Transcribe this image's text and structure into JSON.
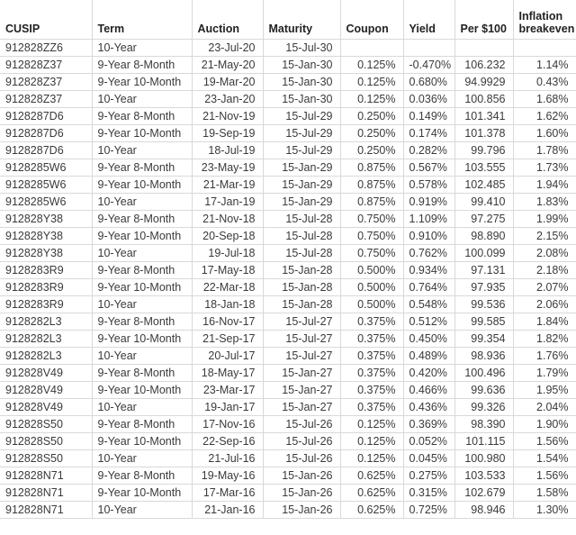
{
  "table": {
    "columns": [
      {
        "key": "cusip",
        "label": "CUSIP",
        "align": "left"
      },
      {
        "key": "term",
        "label": "Term",
        "align": "left"
      },
      {
        "key": "auction",
        "label": "Auction",
        "align": "right"
      },
      {
        "key": "maturity",
        "label": "Maturity",
        "align": "right"
      },
      {
        "key": "coupon",
        "label": "Coupon",
        "align": "right"
      },
      {
        "key": "yield",
        "label": "Yield",
        "align": "right"
      },
      {
        "key": "per100",
        "label": "Per $100",
        "align": "right"
      },
      {
        "key": "breakeven",
        "label": "Inflation breakeven",
        "align": "right"
      }
    ],
    "rows": [
      [
        "912828ZZ6",
        "10-Year",
        "23-Jul-20",
        "15-Jul-30",
        "",
        "",
        "",
        ""
      ],
      [
        "912828Z37",
        "9-Year 8-Month",
        "21-May-20",
        "15-Jan-30",
        "0.125%",
        "-0.470%",
        "106.232",
        "1.14%"
      ],
      [
        "912828Z37",
        "9-Year 10-Month",
        "19-Mar-20",
        "15-Jan-30",
        "0.125%",
        "0.680%",
        "94.9929",
        "0.43%"
      ],
      [
        "912828Z37",
        "10-Year",
        "23-Jan-20",
        "15-Jan-30",
        "0.125%",
        "0.036%",
        "100.856",
        "1.68%"
      ],
      [
        "9128287D6",
        "9-Year 8-Month",
        "21-Nov-19",
        "15-Jul-29",
        "0.250%",
        "0.149%",
        "101.341",
        "1.62%"
      ],
      [
        "9128287D6",
        "9-Year 10-Month",
        "19-Sep-19",
        "15-Jul-29",
        "0.250%",
        "0.174%",
        "101.378",
        "1.60%"
      ],
      [
        "9128287D6",
        "10-Year",
        "18-Jul-19",
        "15-Jul-29",
        "0.250%",
        "0.282%",
        "99.796",
        "1.78%"
      ],
      [
        "9128285W6",
        "9-Year 8-Month",
        "23-May-19",
        "15-Jan-29",
        "0.875%",
        "0.567%",
        "103.555",
        "1.73%"
      ],
      [
        "9128285W6",
        "9-Year 10-Month",
        "21-Mar-19",
        "15-Jan-29",
        "0.875%",
        "0.578%",
        "102.485",
        "1.94%"
      ],
      [
        "9128285W6",
        "10-Year",
        "17-Jan-19",
        "15-Jan-29",
        "0.875%",
        "0.919%",
        "99.410",
        "1.83%"
      ],
      [
        "912828Y38",
        "9-Year 8-Month",
        "21-Nov-18",
        "15-Jul-28",
        "0.750%",
        "1.109%",
        "97.275",
        "1.99%"
      ],
      [
        "912828Y38",
        "9-Year 10-Month",
        "20-Sep-18",
        "15-Jul-28",
        "0.750%",
        "0.910%",
        "98.890",
        "2.15%"
      ],
      [
        "912828Y38",
        "10-Year",
        "19-Jul-18",
        "15-Jul-28",
        "0.750%",
        "0.762%",
        "100.099",
        "2.08%"
      ],
      [
        "9128283R9",
        "9-Year 8-Month",
        "17-May-18",
        "15-Jan-28",
        "0.500%",
        "0.934%",
        "97.131",
        "2.18%"
      ],
      [
        "9128283R9",
        "9-Year 10-Month",
        "22-Mar-18",
        "15-Jan-28",
        "0.500%",
        "0.764%",
        "97.935",
        "2.07%"
      ],
      [
        "9128283R9",
        "10-Year",
        "18-Jan-18",
        "15-Jan-28",
        "0.500%",
        "0.548%",
        "99.536",
        "2.06%"
      ],
      [
        "9128282L3",
        "9-Year 8-Month",
        "16-Nov-17",
        "15-Jul-27",
        "0.375%",
        "0.512%",
        "99.585",
        "1.84%"
      ],
      [
        "9128282L3",
        "9-Year 10-Month",
        "21-Sep-17",
        "15-Jul-27",
        "0.375%",
        "0.450%",
        "99.354",
        "1.82%"
      ],
      [
        "9128282L3",
        "10-Year",
        "20-Jul-17",
        "15-Jul-27",
        "0.375%",
        "0.489%",
        "98.936",
        "1.76%"
      ],
      [
        "912828V49",
        "9-Year 8-Month",
        "18-May-17",
        "15-Jan-27",
        "0.375%",
        "0.420%",
        "100.496",
        "1.79%"
      ],
      [
        "912828V49",
        "9-Year 10-Month",
        "23-Mar-17",
        "15-Jan-27",
        "0.375%",
        "0.466%",
        "99.636",
        "1.95%"
      ],
      [
        "912828V49",
        "10-Year",
        "19-Jan-17",
        "15-Jan-27",
        "0.375%",
        "0.436%",
        "99.326",
        "2.04%"
      ],
      [
        "912828S50",
        "9-Year 8-Month",
        "17-Nov-16",
        "15-Jul-26",
        "0.125%",
        "0.369%",
        "98.390",
        "1.90%"
      ],
      [
        "912828S50",
        "9-Year 10-Month",
        "22-Sep-16",
        "15-Jul-26",
        "0.125%",
        "0.052%",
        "101.115",
        "1.56%"
      ],
      [
        "912828S50",
        "10-Year",
        "21-Jul-16",
        "15-Jul-26",
        "0.125%",
        "0.045%",
        "100.980",
        "1.54%"
      ],
      [
        "912828N71",
        "9-Year 8-Month",
        "19-May-16",
        "15-Jan-26",
        "0.625%",
        "0.275%",
        "103.533",
        "1.56%"
      ],
      [
        "912828N71",
        "9-Year 10-Month",
        "17-Mar-16",
        "15-Jan-26",
        "0.625%",
        "0.315%",
        "102.679",
        "1.58%"
      ],
      [
        "912828N71",
        "10-Year",
        "21-Jan-16",
        "15-Jan-26",
        "0.625%",
        "0.725%",
        "98.946",
        "1.30%"
      ]
    ]
  },
  "colors": {
    "background": "#ffffff",
    "gridline": "#d9d9d9",
    "cell_text": "#3a3a3a",
    "header_text": "#222222"
  }
}
